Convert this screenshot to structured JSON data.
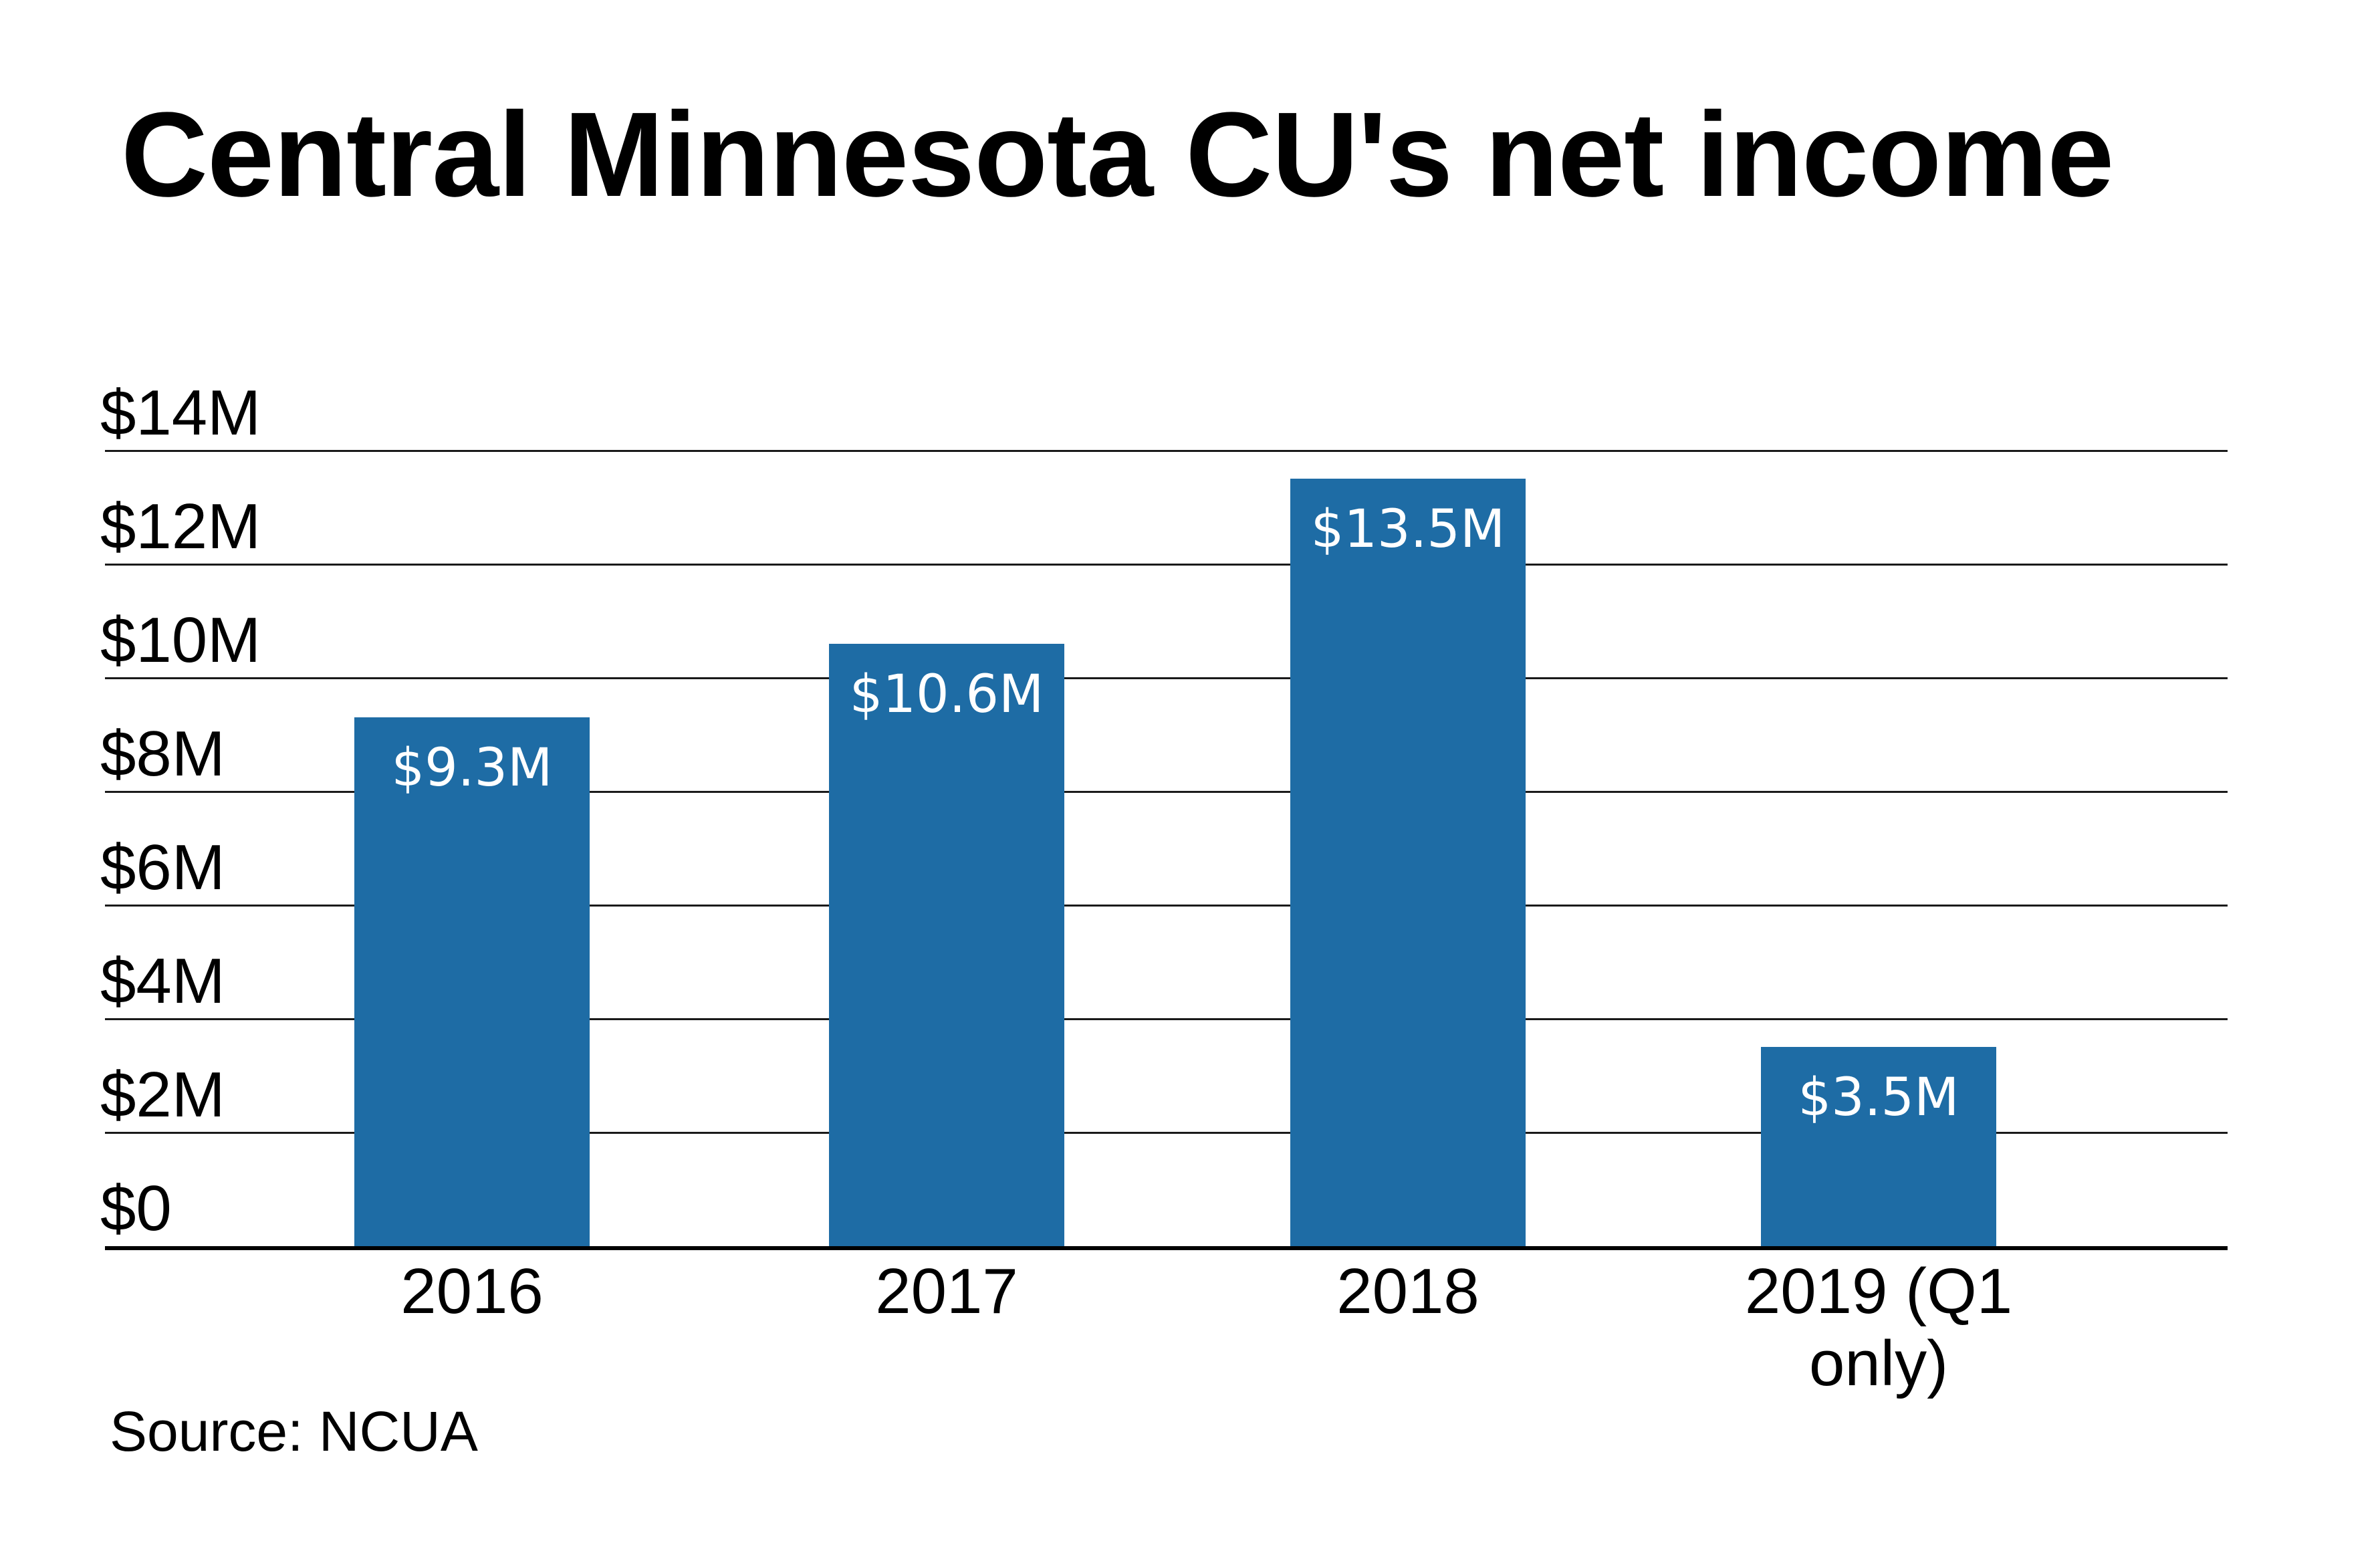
{
  "page": {
    "title": "Central Minnesota CU's net income",
    "source_label": "Source: NCUA"
  },
  "chart_data": {
    "type": "bar",
    "title": "Central Minnesota CU's net income",
    "categories": [
      "2016",
      "2017",
      "2018",
      "2019 (Q1 only)"
    ],
    "values": [
      9.3,
      10.6,
      13.5,
      3.5
    ],
    "bar_labels": [
      "$9.3M",
      "$10.6M",
      "$13.5M",
      "$3.5M"
    ],
    "yticks": [
      {
        "label": "$14M",
        "value": 14
      },
      {
        "label": "$12M",
        "value": 12
      },
      {
        "label": "$10M",
        "value": 10
      },
      {
        "label": "$8M",
        "value": 8
      },
      {
        "label": "$6M",
        "value": 6
      },
      {
        "label": "$4M",
        "value": 4
      },
      {
        "label": "$2M",
        "value": 2
      },
      {
        "label": "$0",
        "value": 0
      }
    ],
    "ylim": [
      0,
      14
    ],
    "grid": true,
    "legend": "none",
    "source": "Source: NCUA",
    "colors": {
      "bar_fill": "#1e6ca5",
      "bar_label_text": "#ffffff",
      "gridline": "#1a1a1a",
      "axis_line": "#000000",
      "text": "#000000",
      "background": "#ffffff"
    }
  }
}
